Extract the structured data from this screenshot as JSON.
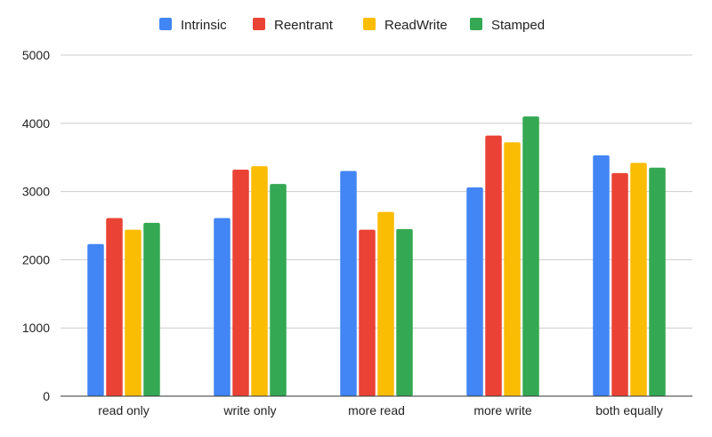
{
  "chart_data": {
    "type": "bar",
    "title": "",
    "xlabel": "",
    "ylabel": "",
    "categories": [
      "read only",
      "write only",
      "more read",
      "more write",
      "both equally"
    ],
    "series": [
      {
        "name": "Intrinsic",
        "color": "#4285F4",
        "values": [
          2230,
          2610,
          3300,
          3060,
          3530
        ]
      },
      {
        "name": "Reentrant",
        "color": "#EA4335",
        "values": [
          2610,
          3320,
          2440,
          3820,
          3270
        ]
      },
      {
        "name": "ReadWrite",
        "color": "#FBBC04",
        "values": [
          2440,
          3370,
          2700,
          3720,
          3420
        ]
      },
      {
        "name": "Stamped",
        "color": "#34A853",
        "values": [
          2540,
          3110,
          2450,
          4100,
          3350
        ]
      }
    ],
    "ylim": [
      0,
      5000
    ],
    "yticks": [
      "0",
      "1000",
      "2000",
      "3000",
      "4000",
      "5000"
    ],
    "grid": true,
    "legend_position": "top-center"
  }
}
